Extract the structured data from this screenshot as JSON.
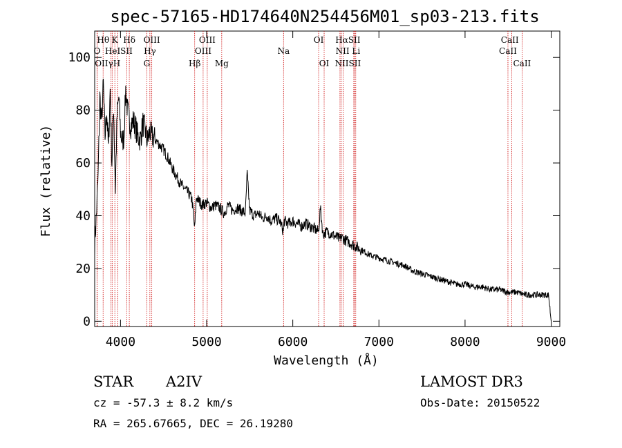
{
  "chart_data": {
    "type": "line",
    "title": "spec-57165-HD174640N254456M01_sp03-213.fits",
    "xlabel": "Wavelength (Å)",
    "ylabel": "Flux (relative)",
    "xlim": [
      3700,
      9100
    ],
    "ylim": [
      -2,
      110
    ],
    "x_ticks": [
      4000,
      5000,
      6000,
      7000,
      8000,
      9000
    ],
    "y_ticks": [
      0,
      20,
      40,
      60,
      80,
      100
    ],
    "series": [
      {
        "name": "flux",
        "x": [
          3700,
          3720,
          3740,
          3760,
          3780,
          3800,
          3820,
          3840,
          3860,
          3880,
          3900,
          3920,
          3940,
          3960,
          3980,
          4000,
          4020,
          4040,
          4060,
          4080,
          4100,
          4120,
          4150,
          4180,
          4200,
          4230,
          4260,
          4290,
          4310,
          4340,
          4360,
          4400,
          4450,
          4500,
          4550,
          4600,
          4650,
          4700,
          4750,
          4800,
          4830,
          4861,
          4880,
          4900,
          4950,
          5000,
          5050,
          5100,
          5150,
          5200,
          5250,
          5300,
          5350,
          5400,
          5450,
          5470,
          5500,
          5550,
          5600,
          5650,
          5700,
          5750,
          5800,
          5850,
          5890,
          5900,
          5950,
          6000,
          6050,
          6100,
          6150,
          6200,
          6250,
          6300,
          6320,
          6350,
          6400,
          6450,
          6500,
          6550,
          6563,
          6600,
          6650,
          6700,
          6750,
          6800,
          6900,
          7000,
          7100,
          7200,
          7300,
          7400,
          7500,
          7600,
          7700,
          7800,
          7900,
          8000,
          8100,
          8200,
          8300,
          8400,
          8500,
          8600,
          8700,
          8800,
          8900,
          8970,
          9000
        ],
        "y": [
          30,
          40,
          55,
          85,
          75,
          90,
          70,
          80,
          65,
          88,
          60,
          82,
          50,
          78,
          85,
          72,
          68,
          70,
          88,
          80,
          77,
          74,
          76,
          73,
          70,
          69,
          75,
          72,
          68,
          72,
          70,
          69,
          67,
          65,
          62,
          58,
          55,
          52,
          50,
          48,
          46,
          35,
          47,
          46,
          44,
          45,
          43,
          44,
          43,
          41,
          44,
          42,
          43,
          42,
          41,
          56,
          42,
          40,
          41,
          39,
          40,
          38,
          39,
          38,
          34,
          38,
          37,
          38,
          37,
          36,
          37,
          36,
          35,
          34,
          43,
          33,
          34,
          33,
          32,
          31,
          32,
          31,
          30,
          29,
          28,
          27,
          25,
          24,
          23,
          22,
          21,
          19,
          18,
          17,
          16,
          15,
          14,
          14,
          13,
          13,
          12,
          12,
          11,
          11,
          10,
          10,
          10,
          10,
          0
        ]
      }
    ],
    "reference_lines": [
      {
        "label": "Hθ",
        "wavelength": 3798
      },
      {
        "label": "O",
        "wavelength": 3727
      },
      {
        "label": "OII",
        "wavelength": 3729
      },
      {
        "label": "K",
        "wavelength": 3934
      },
      {
        "label": "HeI",
        "wavelength": 3889
      },
      {
        "label": "γ",
        "wavelength": 3903
      },
      {
        "label": "H",
        "wavelength": 3968
      },
      {
        "label": "SII",
        "wavelength": 4072
      },
      {
        "label": "Hδ",
        "wavelength": 4102
      },
      {
        "label": "OIII",
        "wavelength": 4363
      },
      {
        "label": "Hγ",
        "wavelength": 4341
      },
      {
        "label": "G",
        "wavelength": 4305
      },
      {
        "label": "Hβ",
        "wavelength": 4861
      },
      {
        "label": "OIII",
        "wavelength": 4959
      },
      {
        "label": "OIII",
        "wavelength": 5007
      },
      {
        "label": "Mg",
        "wavelength": 5175
      },
      {
        "label": "Na",
        "wavelength": 5893
      },
      {
        "label": "OI",
        "wavelength": 6300
      },
      {
        "label": "OI",
        "wavelength": 6364
      },
      {
        "label": "Hα",
        "wavelength": 6563
      },
      {
        "label": "NII",
        "wavelength": 6548
      },
      {
        "label": "NII",
        "wavelength": 6584
      },
      {
        "label": "SII",
        "wavelength": 6717
      },
      {
        "label": "Li",
        "wavelength": 6708
      },
      {
        "label": "SII",
        "wavelength": 6731
      },
      {
        "label": "CaII",
        "wavelength": 8498
      },
      {
        "label": "CaII",
        "wavelength": 8542
      },
      {
        "label": "CaII",
        "wavelength": 8662
      }
    ]
  },
  "line_labels": [
    {
      "text": "Hθ",
      "wavelength": 3798,
      "row": 1
    },
    {
      "text": "K",
      "wavelength": 3934,
      "row": 1
    },
    {
      "text": "Hδ",
      "wavelength": 4102,
      "row": 1
    },
    {
      "text": "OIII",
      "wavelength": 4363,
      "row": 1
    },
    {
      "text": "OIII",
      "wavelength": 5007,
      "row": 1
    },
    {
      "text": "OI",
      "wavelength": 6300,
      "row": 1
    },
    {
      "text": "HαSII",
      "wavelength": 6640,
      "row": 1
    },
    {
      "text": "CaII",
      "wavelength": 8520,
      "row": 1
    },
    {
      "text": "O",
      "wavelength": 3727,
      "row": 2
    },
    {
      "text": "HeISII",
      "wavelength": 3980,
      "row": 2
    },
    {
      "text": "Hγ",
      "wavelength": 4341,
      "row": 2
    },
    {
      "text": "OIII",
      "wavelength": 4959,
      "row": 2
    },
    {
      "text": "Na",
      "wavelength": 5893,
      "row": 2
    },
    {
      "text": "NII Li",
      "wavelength": 6640,
      "row": 2
    },
    {
      "text": "CaII",
      "wavelength": 8498,
      "row": 2
    },
    {
      "text": "OIIγH",
      "wavelength": 3850,
      "row": 3
    },
    {
      "text": "G",
      "wavelength": 4305,
      "row": 3
    },
    {
      "text": "Hβ",
      "wavelength": 4861,
      "row": 3
    },
    {
      "text": "Mg",
      "wavelength": 5175,
      "row": 3
    },
    {
      "text": "OI",
      "wavelength": 6364,
      "row": 3
    },
    {
      "text": "NIISII",
      "wavelength": 6640,
      "row": 3
    },
    {
      "text": "CaII",
      "wavelength": 8662,
      "row": 3
    }
  ],
  "info": {
    "object_class": "STAR",
    "subclass": "A2IV",
    "survey": "LAMOST DR3",
    "cz": "cz = -57.3 ± 8.2 km/s",
    "obs_date": "Obs-Date: 20150522",
    "coords": "RA = 265.67665, DEC =  26.19280"
  }
}
